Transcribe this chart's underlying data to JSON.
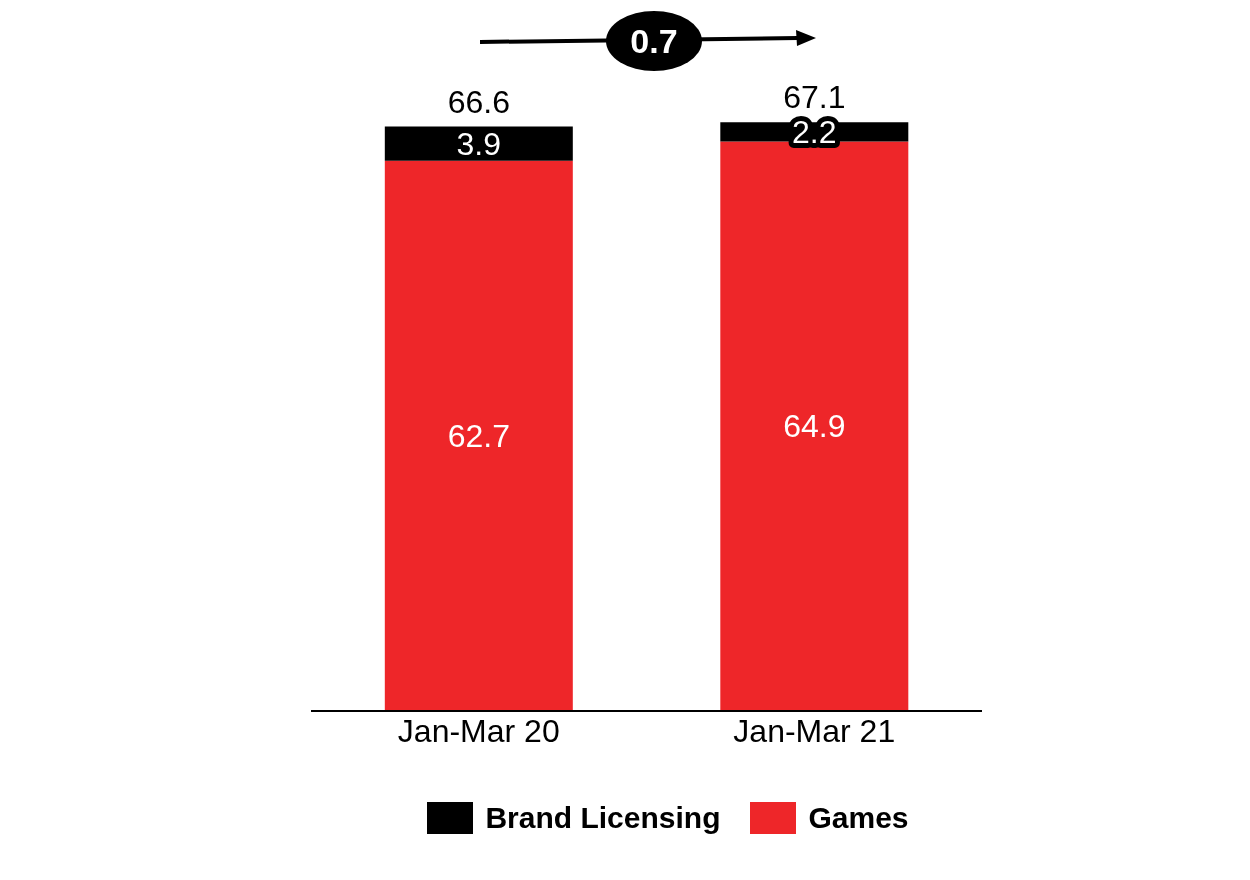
{
  "chart_data": {
    "type": "bar",
    "stacked": true,
    "categories": [
      "Jan-Mar 20",
      "Jan-Mar 21"
    ],
    "series": [
      {
        "name": "Games",
        "color": "#ee2629",
        "values": [
          62.7,
          64.9
        ]
      },
      {
        "name": "Brand Licensing",
        "color": "#000000",
        "values": [
          3.9,
          2.2
        ]
      }
    ],
    "totals": [
      "66.6",
      "67.1"
    ],
    "data_labels": true,
    "legend": "bottom",
    "annotations": [
      "0.7"
    ]
  }
}
